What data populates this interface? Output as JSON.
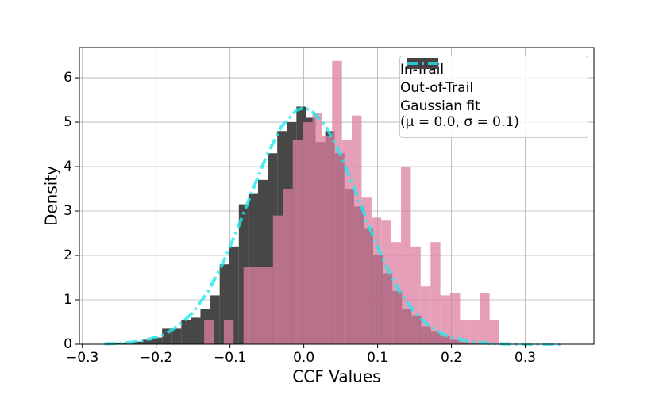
{
  "chart_data": {
    "type": "histogram",
    "xlabel": "CCF Values",
    "ylabel": "Density",
    "xlim": [
      -0.304,
      0.393
    ],
    "ylim": [
      0,
      6.68
    ],
    "xticks": [
      {
        "value": -0.3,
        "label": "−0.3"
      },
      {
        "value": -0.2,
        "label": "−0.2"
      },
      {
        "value": -0.1,
        "label": "−0.1"
      },
      {
        "value": 0,
        "label": "0.0"
      },
      0.1,
      0.2,
      0.3
    ],
    "yticks": [
      0,
      1,
      2,
      3,
      4,
      5,
      6
    ],
    "grid": true,
    "legend": "upper right",
    "series": [
      {
        "name": "In-Trail",
        "type": "histogram",
        "color": "#de7fa0",
        "bins": [
          -0.135,
          -0.1217,
          -0.1083,
          -0.095,
          -0.0817,
          -0.0683,
          -0.055,
          -0.0417,
          -0.0283,
          -0.015,
          -0.0017,
          0.0117,
          0.025,
          0.0383,
          0.0517,
          0.065,
          0.0783,
          0.0917,
          0.105,
          0.1183,
          0.1317,
          0.145,
          0.1583,
          0.1717,
          0.185,
          0.1983,
          0.2117,
          0.225,
          0.2383,
          0.2517,
          0.265
        ],
        "values": [
          0.55,
          0,
          0.55,
          0,
          1.75,
          1.75,
          1.75,
          2.9,
          3.5,
          4.6,
          5.0,
          5.2,
          4.7,
          6.38,
          4.6,
          5.15,
          3.3,
          2.85,
          2.8,
          2.3,
          4.0,
          2.2,
          1.3,
          2.3,
          1.1,
          1.15,
          0.55,
          0.55,
          1.15,
          0.55
        ]
      },
      {
        "name": "Out-of-Trail",
        "type": "histogram",
        "color": "#3d3d3d",
        "bins": [
          -0.27,
          -0.257,
          -0.244,
          -0.231,
          -0.218,
          -0.205,
          -0.192,
          -0.179,
          -0.166,
          -0.153,
          -0.14,
          -0.127,
          -0.114,
          -0.101,
          -0.088,
          -0.075,
          -0.062,
          -0.049,
          -0.036,
          -0.023,
          -0.01,
          0.003,
          0.016,
          0.029,
          0.042,
          0.055,
          0.068,
          0.081,
          0.094,
          0.107,
          0.12,
          0.133,
          0.146,
          0.159,
          0.172,
          0.185,
          0.198,
          0.211,
          0.224,
          0.237,
          0.25
        ],
        "values": [
          0.02,
          0.02,
          0.04,
          0.06,
          0.1,
          0.15,
          0.35,
          0.35,
          0.55,
          0.6,
          0.8,
          1.1,
          1.8,
          2.2,
          3.15,
          3.4,
          3.7,
          4.3,
          4.8,
          5.0,
          5.35,
          5.1,
          4.55,
          4.8,
          4.3,
          3.5,
          3.1,
          2.6,
          2.0,
          1.6,
          1.2,
          0.8,
          0.65,
          0.4,
          0.3,
          0.2,
          0.1,
          0.05,
          0.03,
          0.02
        ]
      },
      {
        "name": "Gaussian fit\n(μ = 0.0, σ = 0.1)",
        "type": "line",
        "color": "#22e8ee",
        "x": [
          -0.27,
          -0.25,
          -0.23,
          -0.21,
          -0.19,
          -0.17,
          -0.15,
          -0.13,
          -0.11,
          -0.09,
          -0.07,
          -0.05,
          -0.03,
          -0.01,
          0,
          0.01,
          0.03,
          0.05,
          0.07,
          0.09,
          0.11,
          0.13,
          0.15,
          0.17,
          0.19,
          0.21,
          0.23,
          0.25,
          0.27,
          0.29,
          0.31,
          0.33,
          0.35
        ],
        "values": [
          0.008,
          0.02,
          0.05,
          0.11,
          0.21,
          0.41,
          0.72,
          1.18,
          1.81,
          2.59,
          3.44,
          4.26,
          4.91,
          5.27,
          5.32,
          5.27,
          4.91,
          4.26,
          3.44,
          2.59,
          1.81,
          1.18,
          0.72,
          0.41,
          0.21,
          0.11,
          0.05,
          0.02,
          0.008,
          0.003,
          0.001,
          0,
          0
        ]
      }
    ]
  }
}
